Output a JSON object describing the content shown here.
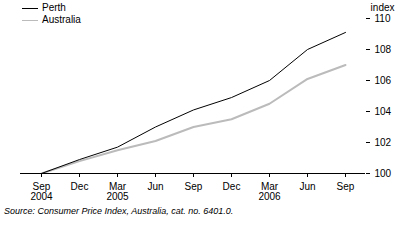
{
  "chart_data": {
    "type": "line",
    "categories": [
      "Sep\n2004",
      "Dec",
      "Mar\n2005",
      "Jun",
      "Sep",
      "Dec",
      "Mar\n2006",
      "Jun",
      "Sep"
    ],
    "series": [
      {
        "name": "Perth",
        "color": "#000000",
        "values": [
          100,
          100.9,
          101.7,
          103.0,
          104.1,
          104.9,
          106.0,
          108.0,
          109.1
        ]
      },
      {
        "name": "Australia",
        "color": "#bbbbbb",
        "values": [
          100,
          100.8,
          101.5,
          102.1,
          103.0,
          103.5,
          104.5,
          106.1,
          107.0
        ]
      }
    ],
    "y_label": "index",
    "ylim": [
      100,
      110
    ],
    "yticks": [
      100,
      102,
      104,
      106,
      108,
      110
    ],
    "grid": false,
    "legend": "top-left",
    "source": "Source: Consumer Price Index, Australia, cat. no. 6401.0."
  }
}
